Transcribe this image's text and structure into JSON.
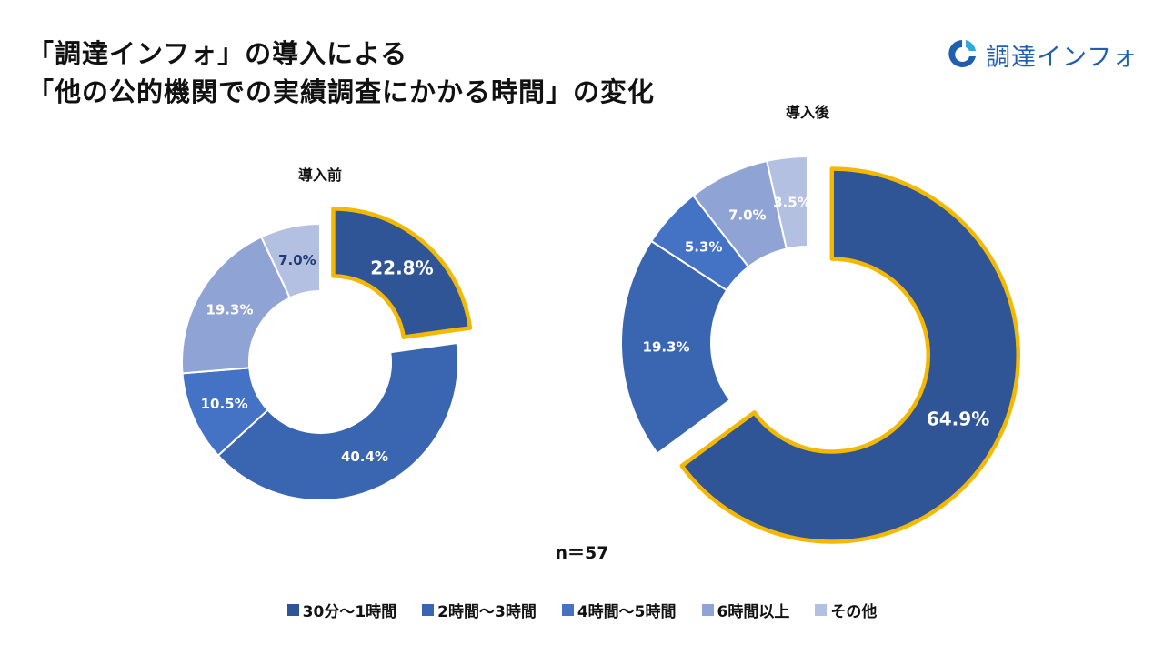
{
  "title": {
    "line1": "「調達インフォ」の導入による",
    "line2": "「他の公的機関での実績調査にかかる時間」の変化"
  },
  "logo": {
    "text": "調達インフォ",
    "icon": "logo-ring-icon",
    "color": "#1f5fb0"
  },
  "chart_data": {
    "type": "pie",
    "variant": "donut",
    "categories": [
      "30分～1時間",
      "2時間～3時間",
      "4時間～5時間",
      "6時間以上",
      "その他"
    ],
    "colors": [
      "#2f5597",
      "#3a65b0",
      "#4472c4",
      "#8fa3d4",
      "#b4c0e2"
    ],
    "highlight_color": "#f5b800",
    "highlighted_category": "30分～1時間",
    "series": [
      {
        "name": "導入前",
        "values": [
          22.8,
          40.4,
          10.5,
          19.3,
          7.0
        ],
        "labels": [
          "22.8%",
          "40.4%",
          "10.5%",
          "19.3%",
          "7.0%"
        ]
      },
      {
        "name": "導入後",
        "values": [
          64.9,
          19.3,
          5.3,
          7.0,
          3.5
        ],
        "labels": [
          "64.9%",
          "19.3%",
          "5.3%",
          "7.0%",
          "3.5%"
        ]
      }
    ],
    "legend_position": "bottom",
    "annotation": "n＝57"
  }
}
